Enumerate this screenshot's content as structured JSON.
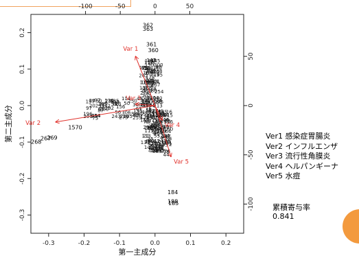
{
  "chart_data": {
    "type": "scatter",
    "title": "",
    "xlabel": "第一主成分",
    "ylabel": "第二主成分",
    "xlim": [
      -0.35,
      0.25
    ],
    "ylim": [
      -0.35,
      0.25
    ],
    "x_ticks": [
      "-0.3",
      "-0.2",
      "-0.1",
      "0.0",
      "0.1",
      "0.2"
    ],
    "y_ticks": [
      "-0.3",
      "-0.2",
      "-0.1",
      "0.0",
      "0.1",
      "0.2"
    ],
    "top_ticks": [
      "-100",
      "-50",
      "0",
      "50"
    ],
    "right_ticks": [
      "-100",
      "-50",
      "0",
      "50"
    ],
    "points": [
      {
        "label": "362",
        "x": -0.02,
        "y": 0.215
      },
      {
        "label": "363",
        "x": -0.02,
        "y": 0.205
      },
      {
        "label": "361",
        "x": -0.01,
        "y": 0.163
      },
      {
        "label": "360",
        "x": -0.005,
        "y": 0.147
      },
      {
        "label": "268",
        "x": -0.335,
        "y": -0.105
      },
      {
        "label": "267",
        "x": -0.308,
        "y": -0.095
      },
      {
        "label": "269",
        "x": -0.29,
        "y": -0.093
      },
      {
        "label": "1570",
        "x": -0.225,
        "y": -0.065
      },
      {
        "label": "184",
        "x": 0.05,
        "y": -0.243
      },
      {
        "label": "188",
        "x": 0.05,
        "y": -0.268
      },
      {
        "label": "185",
        "x": 0.052,
        "y": -0.273
      },
      {
        "label": "20",
        "x": 0.035,
        "y": -0.105
      },
      {
        "label": "13",
        "x": 0.0,
        "y": -0.03
      },
      {
        "label": "31",
        "x": -0.115,
        "y": 0.0
      }
    ],
    "arrows": [
      {
        "name": "Var 1",
        "x": -0.055,
        "y": 0.135
      },
      {
        "name": "Var 2",
        "x": -0.28,
        "y": -0.045
      },
      {
        "name": "Var 3",
        "x": -0.055,
        "y": 0.004
      },
      {
        "name": "Var 4",
        "x": 0.02,
        "y": -0.04
      },
      {
        "name": "Var 5",
        "x": 0.045,
        "y": -0.14
      }
    ],
    "grid": false
  },
  "side": {
    "legend": [
      "Ver1 感染症胃腸炎",
      "Ver2 インフルエンザ",
      "Ver3 流行性角膜炎",
      "Ver4 ヘルパンギーナ",
      "Ver5 水痘"
    ],
    "cumulative_label": "累積寄与率",
    "cumulative_value": "0.841"
  },
  "colors": {
    "arrow": "#e0302a",
    "point": "#000000",
    "frame": "#f1a25e",
    "accent": "#f39a3e"
  }
}
